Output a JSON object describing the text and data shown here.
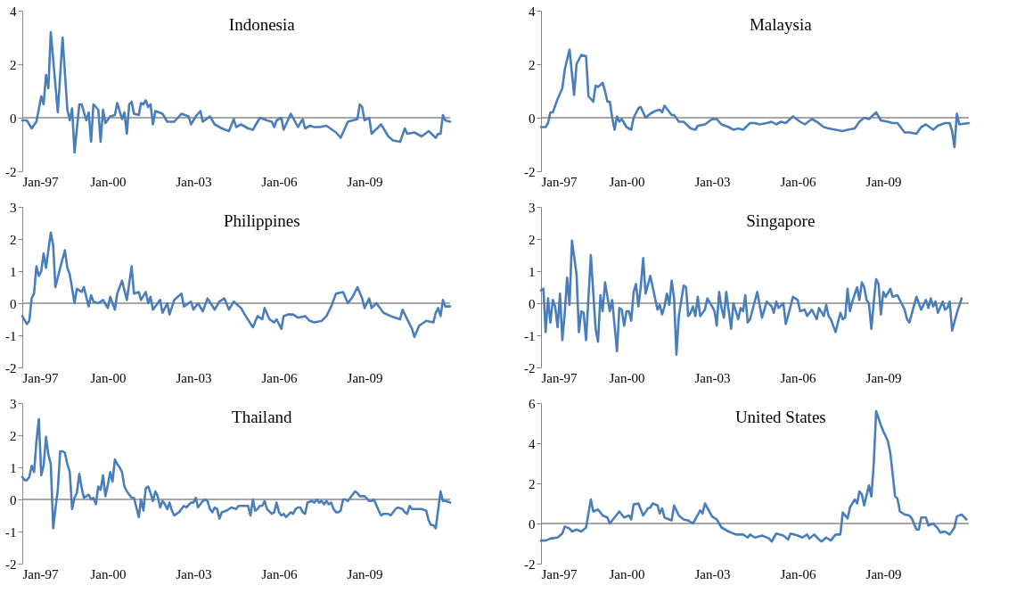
{
  "chart_data": [
    {
      "type": "line",
      "title": "Indonesia",
      "xlim": [
        "1997-01",
        "2012-01"
      ],
      "xticks": [
        {
          "value": "1997-01",
          "label": "Jan-97"
        },
        {
          "value": "2000-01",
          "label": "Jan-00"
        },
        {
          "value": "2003-01",
          "label": "Jan-03"
        },
        {
          "value": "2006-01",
          "label": "Jan-06"
        },
        {
          "value": "2009-01",
          "label": "Jan-09"
        }
      ],
      "ylim": [
        -2,
        4
      ],
      "yticks": [
        -2,
        0,
        2,
        4
      ],
      "ref_lines": [
        {
          "axis": "y",
          "value": 0,
          "color": "#898989"
        }
      ],
      "series": [
        {
          "color": "#4a7ebb",
          "x": [
            "1997-01",
            "1997-03",
            "1997-05",
            "1997-07",
            "1997-09",
            "1997-10",
            "1997-11",
            "1997-12",
            "1998-01",
            "1998-04",
            "1998-06",
            "1998-08",
            "1998-09",
            "1998-10",
            "1998-11",
            "1999-01",
            "1999-02",
            "1999-04",
            "1999-05",
            "1999-06",
            "1999-07",
            "1999-09",
            "1999-10",
            "1999-11",
            "1999-12",
            "2000-02",
            "2000-04",
            "2000-05",
            "2000-07",
            "2000-08",
            "2000-09",
            "2000-10",
            "2000-11",
            "2000-12",
            "2001-02",
            "2001-03",
            "2001-04",
            "2001-05",
            "2001-06",
            "2001-07",
            "2001-08",
            "2001-09",
            "2001-12",
            "2002-02",
            "2002-05",
            "2002-08",
            "2002-11",
            "2002-12",
            "2003-02",
            "2003-04",
            "2003-05",
            "2003-08",
            "2003-10",
            "2004-01",
            "2004-04",
            "2004-06",
            "2004-07",
            "2004-09",
            "2004-12",
            "2005-02",
            "2005-05",
            "2005-08",
            "2005-10",
            "2005-11",
            "2005-12",
            "2006-02",
            "2006-03",
            "2006-06",
            "2006-09",
            "2006-11",
            "2006-12",
            "2007-02",
            "2007-04",
            "2007-06",
            "2007-09",
            "2008-01",
            "2008-03",
            "2008-06",
            "2008-08",
            "2008-10",
            "2008-11",
            "2008-12",
            "2009-01",
            "2009-03",
            "2009-04",
            "2009-08",
            "2009-11",
            "2010-01",
            "2010-04",
            "2010-06",
            "2010-07",
            "2010-10",
            "2011-01",
            "2011-04",
            "2011-07",
            "2011-08",
            "2011-09",
            "2011-10",
            "2011-11",
            "2012-01"
          ],
          "values": [
            -0.1,
            -0.1,
            -0.4,
            -0.15,
            0.8,
            0.5,
            1.6,
            1.1,
            3.2,
            0.2,
            3.0,
            0.3,
            -0.1,
            0.35,
            -1.3,
            0.5,
            0.5,
            -0.1,
            0.2,
            -0.9,
            0.5,
            0.3,
            -0.9,
            0.3,
            -0.2,
            0.05,
            0.1,
            0.55,
            -0.05,
            0.2,
            -0.6,
            0.5,
            0.6,
            0.15,
            0.1,
            0.55,
            0.5,
            0.65,
            0.4,
            0.5,
            -0.25,
            0.25,
            0.15,
            -0.15,
            -0.15,
            0.15,
            0.05,
            -0.25,
            0.05,
            0.25,
            -0.15,
            0.05,
            -0.25,
            -0.4,
            -0.5,
            -0.05,
            -0.35,
            -0.25,
            -0.4,
            -0.45,
            0.0,
            -0.1,
            -0.15,
            -0.35,
            -0.1,
            0.0,
            -0.45,
            0.15,
            -0.35,
            -0.05,
            -0.4,
            -0.3,
            -0.35,
            -0.35,
            -0.3,
            -0.55,
            -0.75,
            -0.15,
            -0.1,
            -0.05,
            0.5,
            0.4,
            -0.1,
            0.0,
            -0.6,
            -0.25,
            -0.7,
            -0.85,
            -0.9,
            -0.4,
            -0.6,
            -0.55,
            -0.7,
            -0.5,
            -0.75,
            -0.6,
            -0.6,
            0.1,
            -0.1,
            -0.15
          ]
        }
      ]
    },
    {
      "type": "line",
      "title": "Malaysia",
      "xlim": [
        "1997-01",
        "2012-01"
      ],
      "xticks": [
        {
          "value": "1997-01",
          "label": "Jan-97"
        },
        {
          "value": "2000-01",
          "label": "Jan-00"
        },
        {
          "value": "2003-01",
          "label": "Jan-03"
        },
        {
          "value": "2006-01",
          "label": "Jan-06"
        },
        {
          "value": "2009-01",
          "label": "Jan-09"
        }
      ],
      "ylim": [
        -2,
        4
      ],
      "yticks": [
        -2,
        0,
        2,
        4
      ],
      "ref_lines": [
        {
          "axis": "y",
          "value": 0,
          "color": "#898989"
        }
      ],
      "series": [
        {
          "color": "#4a7ebb",
          "x": [
            "1997-01",
            "1997-03",
            "1997-04",
            "1997-05",
            "1997-06",
            "1997-08",
            "1997-10",
            "1997-11",
            "1998-01",
            "1998-03",
            "1998-04",
            "1998-06",
            "1998-08",
            "1998-09",
            "1998-11",
            "1998-12",
            "1999-01",
            "1999-03",
            "1999-04",
            "1999-05",
            "1999-06",
            "1999-07",
            "1999-08",
            "1999-09",
            "1999-10",
            "1999-11",
            "2000-01",
            "2000-03",
            "2000-04",
            "2000-06",
            "2000-07",
            "2000-09",
            "2000-11",
            "2001-01",
            "2001-03",
            "2001-04",
            "2001-05",
            "2001-08",
            "2001-09",
            "2001-11",
            "2002-01",
            "2002-04",
            "2002-06",
            "2002-07",
            "2002-10",
            "2003-01",
            "2003-03",
            "2003-05",
            "2003-08",
            "2003-10",
            "2003-12",
            "2004-02",
            "2004-05",
            "2004-07",
            "2004-09",
            "2004-12",
            "2005-02",
            "2005-04",
            "2005-06",
            "2005-08",
            "2005-11",
            "2006-02",
            "2006-04",
            "2006-07",
            "2006-09",
            "2006-12",
            "2007-02",
            "2007-05",
            "2007-08",
            "2007-10",
            "2008-01",
            "2008-03",
            "2008-05",
            "2008-07",
            "2008-10",
            "2008-12",
            "2009-03",
            "2009-05",
            "2009-07",
            "2009-10",
            "2009-12",
            "2010-03",
            "2010-05",
            "2010-07",
            "2010-10",
            "2010-12",
            "2011-03",
            "2011-05",
            "2011-06",
            "2011-07",
            "2011-08",
            "2011-09",
            "2012-01"
          ],
          "values": [
            -0.35,
            -0.35,
            -0.2,
            0.2,
            0.2,
            0.7,
            1.1,
            1.8,
            2.55,
            0.85,
            2.0,
            2.35,
            2.3,
            0.8,
            0.6,
            1.2,
            1.15,
            1.3,
            1.0,
            0.6,
            0.6,
            0.0,
            -0.45,
            0.05,
            -0.15,
            -0.05,
            -0.35,
            -0.45,
            0.0,
            0.35,
            0.4,
            0.0,
            0.15,
            0.25,
            0.3,
            0.2,
            0.45,
            0.1,
            0.1,
            -0.15,
            -0.15,
            -0.4,
            -0.45,
            -0.3,
            -0.25,
            -0.05,
            -0.05,
            -0.25,
            -0.35,
            -0.45,
            -0.4,
            -0.45,
            -0.2,
            -0.2,
            -0.25,
            -0.2,
            -0.15,
            -0.25,
            -0.15,
            -0.2,
            0.05,
            -0.15,
            -0.25,
            -0.05,
            -0.15,
            -0.35,
            -0.4,
            -0.45,
            -0.5,
            -0.45,
            -0.4,
            -0.15,
            0.0,
            -0.05,
            0.2,
            -0.1,
            -0.15,
            -0.2,
            -0.2,
            -0.55,
            -0.55,
            -0.6,
            -0.35,
            -0.25,
            -0.45,
            -0.3,
            -0.2,
            -0.2,
            -0.5,
            -1.1,
            0.15,
            -0.25,
            -0.2
          ]
        }
      ]
    },
    {
      "type": "line",
      "title": "Philippines",
      "xlim": [
        "1997-01",
        "2012-01"
      ],
      "xticks": [
        {
          "value": "1997-01",
          "label": "Jan-97"
        },
        {
          "value": "2000-01",
          "label": "Jan-00"
        },
        {
          "value": "2003-01",
          "label": "Jan-03"
        },
        {
          "value": "2006-01",
          "label": "Jan-06"
        },
        {
          "value": "2009-01",
          "label": "Jan-09"
        }
      ],
      "ylim": [
        -2,
        3
      ],
      "yticks": [
        -2,
        -1,
        0,
        1,
        2,
        3
      ],
      "ref_lines": [
        {
          "axis": "y",
          "value": 0,
          "color": "#898989"
        }
      ],
      "series": [
        {
          "color": "#4a7ebb",
          "x": [
            "1997-01",
            "1997-03",
            "1997-04",
            "1997-05",
            "1997-06",
            "1997-07",
            "1997-08",
            "1997-09",
            "1997-10",
            "1997-11",
            "1998-01",
            "1998-02",
            "1998-03",
            "1998-04",
            "1998-05",
            "1998-07",
            "1998-08",
            "1998-09",
            "1998-11",
            "1998-12",
            "1999-02",
            "1999-03",
            "1999-05",
            "1999-06",
            "1999-07",
            "1999-09",
            "1999-11",
            "2000-01",
            "2000-02",
            "2000-04",
            "2000-05",
            "2000-06",
            "2000-07",
            "2000-09",
            "2000-11",
            "2000-12",
            "2001-02",
            "2001-03",
            "2001-05",
            "2001-06",
            "2001-07",
            "2001-08",
            "2001-11",
            "2001-12",
            "2002-02",
            "2002-03",
            "2002-05",
            "2002-08",
            "2002-09",
            "2002-12",
            "2003-01",
            "2003-03",
            "2003-05",
            "2003-07",
            "2003-10",
            "2003-12",
            "2004-02",
            "2004-04",
            "2004-06",
            "2004-09",
            "2004-11",
            "2005-02",
            "2005-04",
            "2005-06",
            "2005-07",
            "2005-09",
            "2005-11",
            "2005-12",
            "2006-02",
            "2006-03",
            "2006-05",
            "2006-07",
            "2006-09",
            "2006-12",
            "2007-02",
            "2007-04",
            "2007-07",
            "2007-09",
            "2007-11",
            "2008-01",
            "2008-04",
            "2008-06",
            "2008-08",
            "2008-10",
            "2008-12",
            "2009-01",
            "2009-03",
            "2009-04",
            "2009-06",
            "2009-09",
            "2009-12",
            "2010-04",
            "2010-05",
            "2010-07",
            "2010-09",
            "2010-10",
            "2010-12",
            "2011-03",
            "2011-06",
            "2011-07",
            "2011-08",
            "2011-09",
            "2011-10",
            "2011-11",
            "2012-01"
          ],
          "values": [
            -0.4,
            -0.65,
            -0.55,
            0.15,
            0.3,
            1.15,
            0.85,
            1.0,
            1.55,
            1.1,
            2.2,
            1.8,
            0.5,
            0.8,
            1.1,
            1.65,
            1.1,
            0.9,
            0.0,
            0.45,
            0.35,
            0.5,
            -0.1,
            0.25,
            0.05,
            0.0,
            0.1,
            -0.15,
            0.2,
            -0.2,
            0.3,
            0.5,
            0.7,
            0.1,
            1.15,
            0.3,
            0.35,
            0.1,
            0.35,
            0.0,
            0.2,
            -0.2,
            0.1,
            -0.3,
            0.0,
            -0.35,
            0.1,
            0.3,
            -0.1,
            0.05,
            -0.2,
            0.0,
            -0.25,
            0.15,
            -0.2,
            0.05,
            0.15,
            -0.2,
            0.05,
            -0.15,
            -0.4,
            -0.75,
            -0.4,
            -0.5,
            -0.15,
            -0.5,
            -0.6,
            -0.5,
            -0.8,
            -0.4,
            -0.35,
            -0.35,
            -0.45,
            -0.4,
            -0.55,
            -0.6,
            -0.55,
            -0.4,
            -0.1,
            0.3,
            0.35,
            0.0,
            0.2,
            0.5,
            0.15,
            -0.15,
            0.15,
            -0.15,
            0.0,
            -0.3,
            -0.4,
            -0.5,
            -0.2,
            -0.5,
            -0.8,
            -1.05,
            -0.7,
            -0.55,
            -0.6,
            -0.3,
            -0.15,
            -0.4,
            0.1,
            -0.1,
            -0.1
          ]
        }
      ]
    },
    {
      "type": "line",
      "title": "Singapore",
      "xlim": [
        "1997-01",
        "2012-01"
      ],
      "xticks": [
        {
          "value": "1997-01",
          "label": "Jan-97"
        },
        {
          "value": "2000-01",
          "label": "Jan-00"
        },
        {
          "value": "2003-01",
          "label": "Jan-03"
        },
        {
          "value": "2006-01",
          "label": "Jan-06"
        },
        {
          "value": "2009-01",
          "label": "Jan-09"
        }
      ],
      "ylim": [
        -2,
        3
      ],
      "yticks": [
        -2,
        -1,
        0,
        1,
        2,
        3
      ],
      "ref_lines": [
        {
          "axis": "y",
          "value": 0,
          "color": "#898989"
        }
      ],
      "series": [
        {
          "color": "#4a7ebb",
          "x": [
            "1997-01",
            "1997-02",
            "1997-03",
            "1997-04",
            "1997-05",
            "1997-06",
            "1997-07",
            "1997-08",
            "1997-09",
            "1997-10",
            "1997-11",
            "1997-12",
            "1998-01",
            "1998-02",
            "1998-04",
            "1998-05",
            "1998-06",
            "1998-07",
            "1998-08",
            "1998-10",
            "1998-12",
            "1999-01",
            "1999-02",
            "1999-03",
            "1999-04",
            "1999-06",
            "1999-07",
            "1999-09",
            "1999-10",
            "1999-11",
            "1999-12",
            "2000-01",
            "2000-02",
            "2000-03",
            "2000-04",
            "2000-05",
            "2000-06",
            "2000-07",
            "2000-08",
            "2000-09",
            "2000-11",
            "2000-12",
            "2001-02",
            "2001-03",
            "2001-04",
            "2001-05",
            "2001-06",
            "2001-07",
            "2001-08",
            "2001-09",
            "2001-10",
            "2001-11",
            "2002-01",
            "2002-02",
            "2002-03",
            "2002-04",
            "2002-05",
            "2002-06",
            "2002-07",
            "2002-08",
            "2002-10",
            "2002-11",
            "2003-01",
            "2003-02",
            "2003-03",
            "2003-04",
            "2003-05",
            "2003-06",
            "2003-07",
            "2003-09",
            "2003-10",
            "2003-12",
            "2004-01",
            "2004-02",
            "2004-03",
            "2004-04",
            "2004-05",
            "2004-08",
            "2004-10",
            "2004-12",
            "2005-02",
            "2005-03",
            "2005-04",
            "2005-05",
            "2005-07",
            "2005-08",
            "2005-10",
            "2005-11",
            "2006-01",
            "2006-02",
            "2006-04",
            "2006-05",
            "2006-07",
            "2006-09",
            "2006-10",
            "2006-12",
            "2007-01",
            "2007-02",
            "2007-03",
            "2007-05",
            "2007-07",
            "2007-08",
            "2007-09",
            "2007-10",
            "2007-11",
            "2007-12",
            "2008-02",
            "2008-03",
            "2008-04",
            "2008-05",
            "2008-06",
            "2008-07",
            "2008-08",
            "2008-09",
            "2008-10",
            "2008-11",
            "2008-12",
            "2009-01",
            "2009-02",
            "2009-04",
            "2009-05",
            "2009-07",
            "2009-10",
            "2009-11",
            "2009-12",
            "2010-03",
            "2010-05",
            "2010-07",
            "2010-08",
            "2010-09",
            "2010-10",
            "2010-11",
            "2010-12",
            "2011-02",
            "2011-03",
            "2011-04",
            "2011-05",
            "2011-06",
            "2011-08",
            "2011-10"
          ],
          "values": [
            0.4,
            0.45,
            -0.9,
            0.15,
            -0.6,
            0.1,
            -0.1,
            -0.75,
            0.3,
            -1.15,
            -0.3,
            0.8,
            -0.05,
            1.95,
            0.9,
            -0.9,
            -0.25,
            -0.3,
            -1.15,
            1.5,
            -0.8,
            -1.2,
            0.25,
            -0.25,
            0.65,
            -0.25,
            0.1,
            -1.5,
            -0.15,
            -0.2,
            -0.7,
            -0.25,
            -0.25,
            -0.55,
            0.35,
            0.6,
            -0.1,
            0.5,
            1.4,
            0.3,
            0.85,
            0.5,
            -0.2,
            -0.05,
            -0.35,
            -0.1,
            0.3,
            -0.05,
            0.7,
            0.15,
            -1.6,
            -0.4,
            0.55,
            0.5,
            -0.4,
            -0.3,
            -0.1,
            -0.4,
            0.2,
            -0.4,
            -0.2,
            0.15,
            -0.1,
            -0.25,
            -0.7,
            0.35,
            -0.15,
            -0.45,
            0.35,
            -0.8,
            0.0,
            -0.5,
            -0.15,
            -0.25,
            0.25,
            -0.6,
            -0.5,
            0.35,
            -0.45,
            0.05,
            -0.1,
            -0.3,
            0.05,
            -0.15,
            0.0,
            -0.65,
            -0.1,
            0.2,
            0.1,
            -0.25,
            -0.2,
            -0.4,
            -0.2,
            -0.5,
            -0.15,
            -0.4,
            -0.05,
            -0.4,
            -0.5,
            -0.9,
            -0.3,
            -0.5,
            -0.45,
            0.45,
            -0.25,
            0.05,
            0.5,
            0.1,
            0.65,
            0.5,
            0.1,
            0.0,
            -0.8,
            0.05,
            0.75,
            0.6,
            -0.35,
            0.35,
            0.2,
            0.45,
            0.2,
            0.25,
            -0.2,
            -0.5,
            -0.6,
            0.2,
            -0.2,
            0.1,
            -0.15,
            0.15,
            -0.1,
            0.05,
            -0.3,
            0.05,
            -0.2,
            -0.15,
            0.05,
            -0.85,
            -0.3,
            0.15
          ]
        }
      ]
    },
    {
      "type": "line",
      "title": "Thailand",
      "xlim": [
        "1997-01",
        "2012-01"
      ],
      "xticks": [
        {
          "value": "1997-01",
          "label": "Jan-97"
        },
        {
          "value": "2000-01",
          "label": "Jan-00"
        },
        {
          "value": "2003-01",
          "label": "Jan-03"
        },
        {
          "value": "2006-01",
          "label": "Jan-06"
        },
        {
          "value": "2009-01",
          "label": "Jan-09"
        }
      ],
      "ylim": [
        -2,
        3
      ],
      "yticks": [
        -2,
        -1,
        0,
        1,
        2,
        3
      ],
      "ref_lines": [
        {
          "axis": "y",
          "value": 0,
          "color": "#898989"
        }
      ],
      "series": [
        {
          "color": "#4a7ebb",
          "x": [
            "1997-01",
            "1997-02",
            "1997-03",
            "1997-04",
            "1997-05",
            "1997-06",
            "1997-07",
            "1997-08",
            "1997-09",
            "1997-10",
            "1997-11",
            "1997-12",
            "1998-01",
            "1998-02",
            "1998-03",
            "1998-04",
            "1998-05",
            "1998-06",
            "1998-07",
            "1998-08",
            "1998-09",
            "1998-10",
            "1998-11",
            "1998-12",
            "1999-01",
            "1999-02",
            "1999-03",
            "1999-04",
            "1999-05",
            "1999-06",
            "1999-07",
            "1999-08",
            "1999-09",
            "1999-10",
            "1999-11",
            "1999-12",
            "2000-01",
            "2000-02",
            "2000-03",
            "2000-04",
            "2000-05",
            "2000-06",
            "2000-07",
            "2000-08",
            "2000-09",
            "2000-10",
            "2000-11",
            "2000-12",
            "2001-02",
            "2001-03",
            "2001-04",
            "2001-05",
            "2001-06",
            "2001-07",
            "2001-08",
            "2001-09",
            "2001-10",
            "2001-11",
            "2001-12",
            "2002-01",
            "2002-02",
            "2002-03",
            "2002-04",
            "2002-05",
            "2002-07",
            "2002-09",
            "2002-10",
            "2002-12",
            "2003-01",
            "2003-02",
            "2003-03",
            "2003-05",
            "2003-06",
            "2003-07",
            "2003-08",
            "2003-09",
            "2003-10",
            "2003-11",
            "2003-12",
            "2004-01",
            "2004-03",
            "2004-05",
            "2004-07",
            "2004-08",
            "2004-10",
            "2004-12",
            "2005-01",
            "2005-02",
            "2005-03",
            "2005-04",
            "2005-05",
            "2005-06",
            "2005-07",
            "2005-08",
            "2005-10",
            "2005-11",
            "2005-12",
            "2006-01",
            "2006-02",
            "2006-03",
            "2006-04",
            "2006-06",
            "2006-07",
            "2006-08",
            "2006-09",
            "2006-10",
            "2006-11",
            "2006-12",
            "2007-01",
            "2007-03",
            "2007-04",
            "2007-05",
            "2007-06",
            "2007-07",
            "2007-08",
            "2007-09",
            "2007-10",
            "2007-11",
            "2007-12",
            "2008-01",
            "2008-02",
            "2008-03",
            "2008-04",
            "2008-05",
            "2008-06",
            "2008-07",
            "2008-09",
            "2008-10",
            "2008-11",
            "2009-01",
            "2009-03",
            "2009-04",
            "2009-05",
            "2009-07",
            "2009-08",
            "2009-09",
            "2009-11",
            "2009-12",
            "2010-02",
            "2010-03",
            "2010-05",
            "2010-06",
            "2010-07",
            "2010-08",
            "2010-09",
            "2010-11",
            "2011-01",
            "2011-03",
            "2011-04",
            "2011-05",
            "2011-06",
            "2011-07",
            "2011-09",
            "2011-10",
            "2011-11",
            "2012-01"
          ],
          "values": [
            0.7,
            0.6,
            0.6,
            0.7,
            1.05,
            0.85,
            1.8,
            2.5,
            0.75,
            1.05,
            1.95,
            1.4,
            1.1,
            -0.9,
            -0.3,
            0.3,
            1.5,
            1.5,
            1.45,
            1.1,
            0.85,
            -0.3,
            0.05,
            0.2,
            0.8,
            0.35,
            0.05,
            0.1,
            0.15,
            0.0,
            0.05,
            -0.15,
            0.4,
            0.3,
            0.75,
            0.1,
            0.45,
            0.85,
            0.55,
            1.25,
            1.1,
            1.0,
            0.85,
            0.4,
            0.25,
            0.15,
            0.05,
            0.05,
            -0.55,
            0.0,
            -0.35,
            0.35,
            0.4,
            0.2,
            -0.05,
            0.25,
            0.1,
            -0.25,
            -0.05,
            -0.15,
            -0.3,
            -0.1,
            -0.35,
            -0.5,
            -0.4,
            -0.2,
            -0.25,
            -0.1,
            -0.1,
            0.05,
            -0.25,
            -0.05,
            0.0,
            -0.05,
            -0.3,
            -0.4,
            -0.25,
            -0.3,
            -0.6,
            -0.4,
            -0.35,
            -0.25,
            -0.3,
            -0.2,
            -0.2,
            -0.2,
            -0.5,
            0.0,
            -0.35,
            -0.3,
            -0.2,
            -0.2,
            -0.05,
            -0.3,
            -0.45,
            -0.4,
            -0.1,
            -0.4,
            -0.5,
            -0.45,
            -0.55,
            -0.4,
            -0.45,
            -0.3,
            -0.25,
            -0.25,
            -0.4,
            -0.45,
            -0.1,
            -0.05,
            -0.1,
            0.0,
            -0.1,
            -0.05,
            -0.15,
            -0.05,
            -0.15,
            -0.1,
            -0.3,
            -0.4,
            -0.4,
            -0.35,
            0.0,
            0.0,
            -0.05,
            0.05,
            0.25,
            0.2,
            0.1,
            0.1,
            -0.05,
            -0.05,
            0.0,
            -0.35,
            -0.5,
            -0.45,
            -0.45,
            -0.5,
            -0.3,
            -0.25,
            -0.3,
            -0.4,
            -0.45,
            -0.2,
            -0.3,
            -0.3,
            -0.3,
            -0.35,
            -0.65,
            -0.8,
            -0.8,
            -0.9,
            0.25,
            -0.05,
            -0.05,
            -0.1
          ]
        }
      ]
    },
    {
      "type": "line",
      "title": "United States",
      "xlim": [
        "1997-01",
        "2012-01"
      ],
      "xticks": [
        {
          "value": "1997-01",
          "label": "Jan-97"
        },
        {
          "value": "2000-01",
          "label": "Jan-00"
        },
        {
          "value": "2003-01",
          "label": "Jan-03"
        },
        {
          "value": "2006-01",
          "label": "Jan-06"
        },
        {
          "value": "2009-01",
          "label": "Jan-09"
        }
      ],
      "ylim": [
        -2,
        6
      ],
      "yticks": [
        -2,
        0,
        2,
        4,
        6
      ],
      "ref_lines": [
        {
          "axis": "y",
          "value": 0,
          "color": "#898989"
        }
      ],
      "series": [
        {
          "color": "#4a7ebb",
          "x": [
            "1997-01",
            "1997-03",
            "1997-05",
            "1997-08",
            "1997-10",
            "1997-11",
            "1998-01",
            "1998-02",
            "1998-04",
            "1998-06",
            "1998-08",
            "1998-10",
            "1998-11",
            "1999-01",
            "1999-03",
            "1999-05",
            "1999-06",
            "1999-08",
            "1999-10",
            "1999-12",
            "2000-02",
            "2000-03",
            "2000-04",
            "2000-06",
            "2000-08",
            "2000-10",
            "2000-11",
            "2000-12",
            "2001-02",
            "2001-03",
            "2001-04",
            "2001-05",
            "2001-07",
            "2001-08",
            "2001-09",
            "2001-11",
            "2002-01",
            "2002-03",
            "2002-05",
            "2002-08",
            "2002-09",
            "2002-10",
            "2003-01",
            "2003-03",
            "2003-05",
            "2003-08",
            "2003-11",
            "2004-02",
            "2004-04",
            "2004-05",
            "2004-07",
            "2004-10",
            "2005-01",
            "2005-02",
            "2005-04",
            "2005-07",
            "2005-09",
            "2005-10",
            "2006-01",
            "2006-03",
            "2006-05",
            "2006-06",
            "2006-08",
            "2006-10",
            "2006-11",
            "2007-01",
            "2007-03",
            "2007-05",
            "2007-07",
            "2007-08",
            "2007-10",
            "2007-11",
            "2008-01",
            "2008-02",
            "2008-03",
            "2008-04",
            "2008-05",
            "2008-07",
            "2008-08",
            "2008-09",
            "2008-10",
            "2008-12",
            "2009-01",
            "2009-03",
            "2009-04",
            "2009-06",
            "2009-07",
            "2009-08",
            "2009-10",
            "2009-12",
            "2010-01",
            "2010-03",
            "2010-04",
            "2010-05",
            "2010-07",
            "2010-08",
            "2010-10",
            "2010-12",
            "2011-01",
            "2011-03",
            "2011-05",
            "2011-07",
            "2011-08",
            "2011-10",
            "2011-12"
          ],
          "values": [
            -0.85,
            -0.85,
            -0.75,
            -0.7,
            -0.5,
            -0.15,
            -0.25,
            -0.4,
            -0.3,
            -0.4,
            -0.2,
            1.2,
            0.6,
            0.7,
            0.4,
            0.3,
            0.0,
            0.3,
            0.6,
            0.3,
            0.4,
            0.2,
            0.95,
            1.0,
            0.4,
            0.75,
            0.8,
            1.0,
            0.9,
            0.5,
            0.75,
            0.3,
            0.2,
            0.15,
            0.9,
            0.4,
            0.2,
            0.15,
            0.0,
            0.65,
            0.5,
            1.0,
            0.35,
            0.2,
            -0.2,
            -0.4,
            -0.55,
            -0.55,
            -0.7,
            -0.55,
            -0.7,
            -0.6,
            -0.75,
            -0.9,
            -0.5,
            -0.6,
            -0.8,
            -0.5,
            -0.6,
            -0.7,
            -0.55,
            -0.75,
            -0.55,
            -0.8,
            -0.9,
            -0.7,
            -0.85,
            -0.55,
            -0.55,
            0.55,
            0.25,
            0.8,
            1.2,
            1.0,
            1.6,
            1.45,
            0.9,
            1.9,
            1.35,
            3.0,
            5.6,
            4.9,
            4.6,
            4.1,
            3.5,
            1.35,
            1.25,
            0.6,
            0.45,
            0.4,
            0.25,
            -0.3,
            -0.3,
            0.3,
            0.3,
            -0.1,
            0.0,
            -0.25,
            -0.45,
            -0.4,
            -0.55,
            -0.2,
            0.35,
            0.45,
            0.2
          ]
        }
      ]
    }
  ]
}
